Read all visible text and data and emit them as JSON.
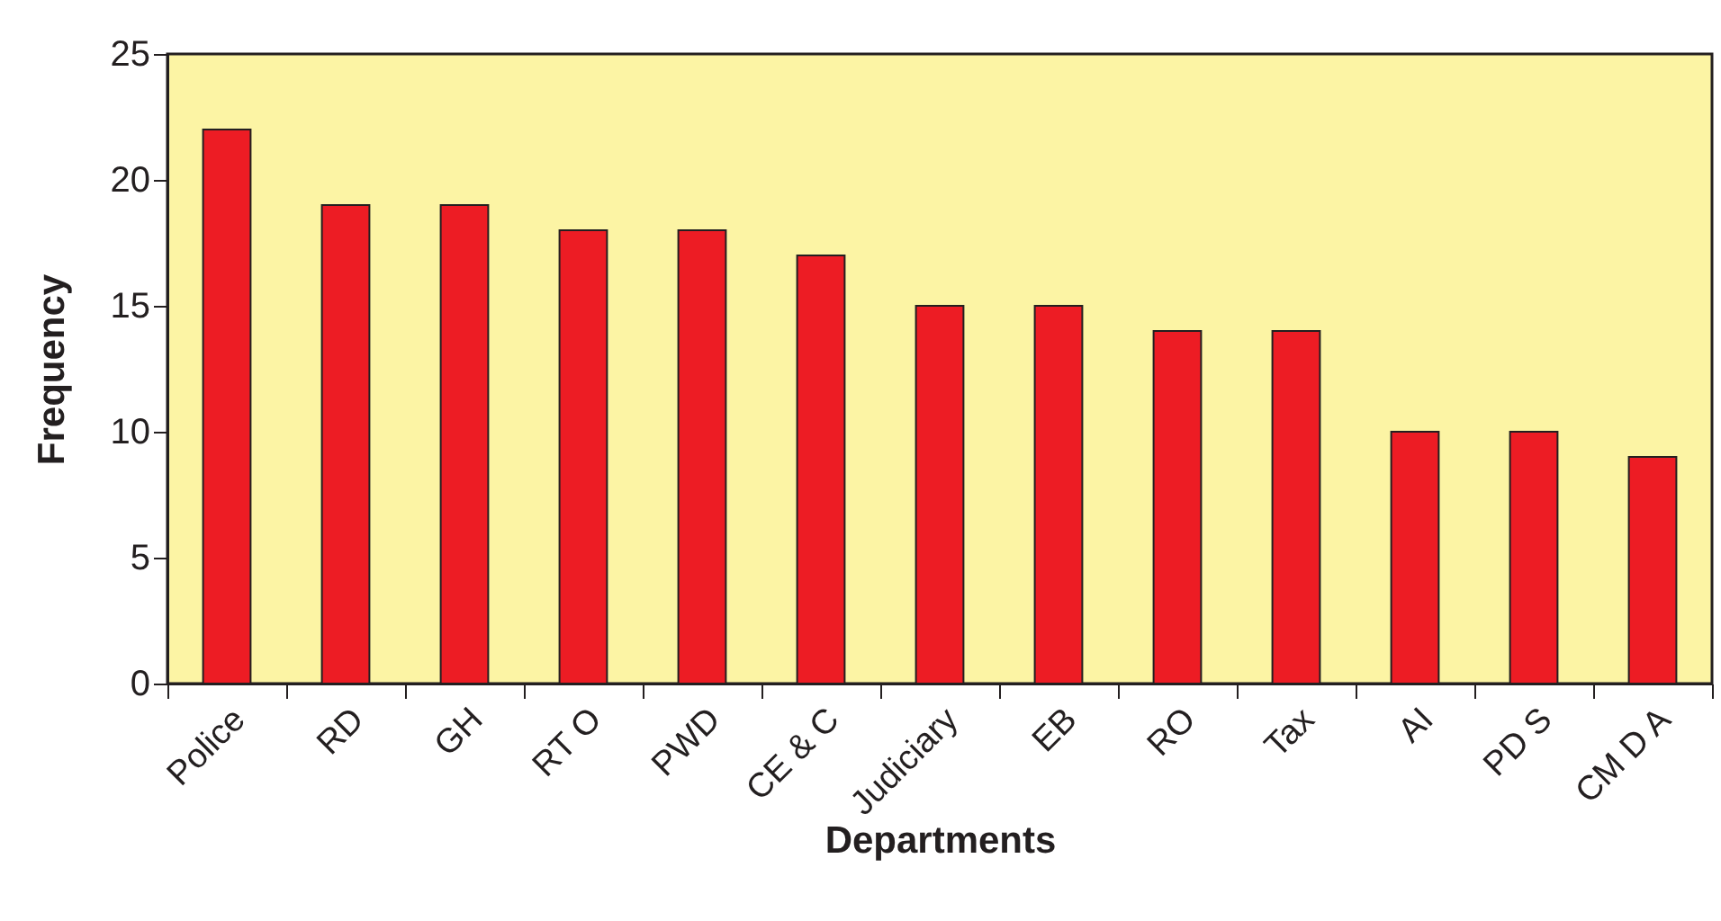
{
  "chart_data": {
    "type": "bar",
    "xlabel": "Departments",
    "ylabel": "Frequency",
    "categories": [
      "Police",
      "RD",
      "GH",
      "RT O",
      "PWD",
      "CE & C",
      "Judiciary",
      "EB",
      "RO",
      "Tax",
      "AI",
      "PD S",
      "CM D A"
    ],
    "values": [
      22,
      19,
      19,
      18,
      18,
      17,
      15,
      15,
      14,
      14,
      10,
      10,
      9
    ],
    "color": "#ed1c24",
    "ylim": [
      0,
      25
    ],
    "yticks": [
      0,
      5,
      10,
      15,
      20,
      25
    ],
    "grid": false
  }
}
